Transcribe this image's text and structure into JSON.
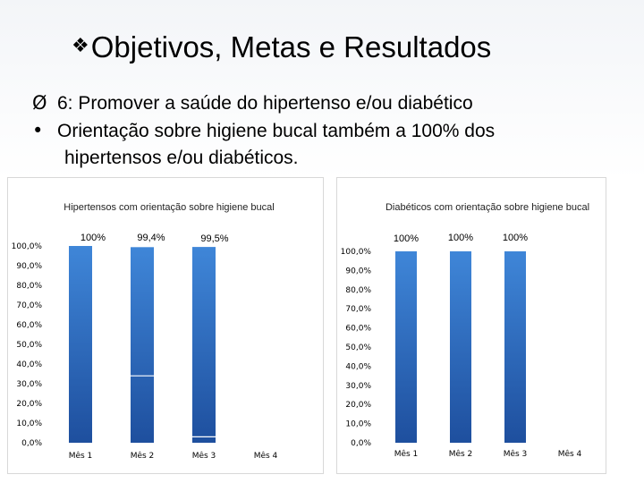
{
  "slide": {
    "title": "Objetivos, Metas e Resultados",
    "bullets": [
      {
        "marker": "Ø",
        "text": "6: Promover a saúde do hipertenso e/ou diabético"
      },
      {
        "marker": "•",
        "text": "Orientação sobre higiene bucal também a 100% dos"
      },
      {
        "marker": "",
        "text": "hipertensos e/ou diabéticos."
      }
    ]
  },
  "colors": {
    "bar_top": "#3f86d8",
    "bar_bottom": "#1e4f9e",
    "title_marker": "#000000"
  },
  "icons": {
    "title_marker": "diamond-bullet-icon"
  },
  "chart_data": [
    {
      "type": "bar",
      "title": "Hipertensos com orientação sobre higiene bucal",
      "categories": [
        "Mês 1",
        "Mês 2",
        "Mês 3",
        "Mês 4"
      ],
      "values": [
        100,
        99.4,
        99.5,
        null
      ],
      "data_labels": [
        "100%",
        "99,4%",
        "99,5%",
        ""
      ],
      "inner_marks": [
        null,
        34,
        3,
        null
      ],
      "y_ticks": [
        "0,0%",
        "10,0%",
        "20,0%",
        "30,0%",
        "40,0%",
        "50,0%",
        "60,0%",
        "70,0%",
        "80,0%",
        "90,0%",
        "100,0%"
      ],
      "ylim": [
        0,
        100
      ],
      "grid": false,
      "legend": "none"
    },
    {
      "type": "bar",
      "title": "Diabéticos com orientação sobre higiene bucal",
      "categories": [
        "Mês 1",
        "Mês 2",
        "Mês 3",
        "Mês 4"
      ],
      "values": [
        100,
        100,
        100,
        null
      ],
      "data_labels": [
        "100%",
        "100%",
        "100%",
        ""
      ],
      "inner_marks": [
        null,
        null,
        null,
        null
      ],
      "y_ticks": [
        "0,0%",
        "10,0%",
        "20,0%",
        "30,0%",
        "40,0%",
        "50,0%",
        "60,0%",
        "70,0%",
        "80,0%",
        "90,0%",
        "100,0%"
      ],
      "ylim": [
        0,
        100
      ],
      "grid": false,
      "legend": "none"
    }
  ]
}
